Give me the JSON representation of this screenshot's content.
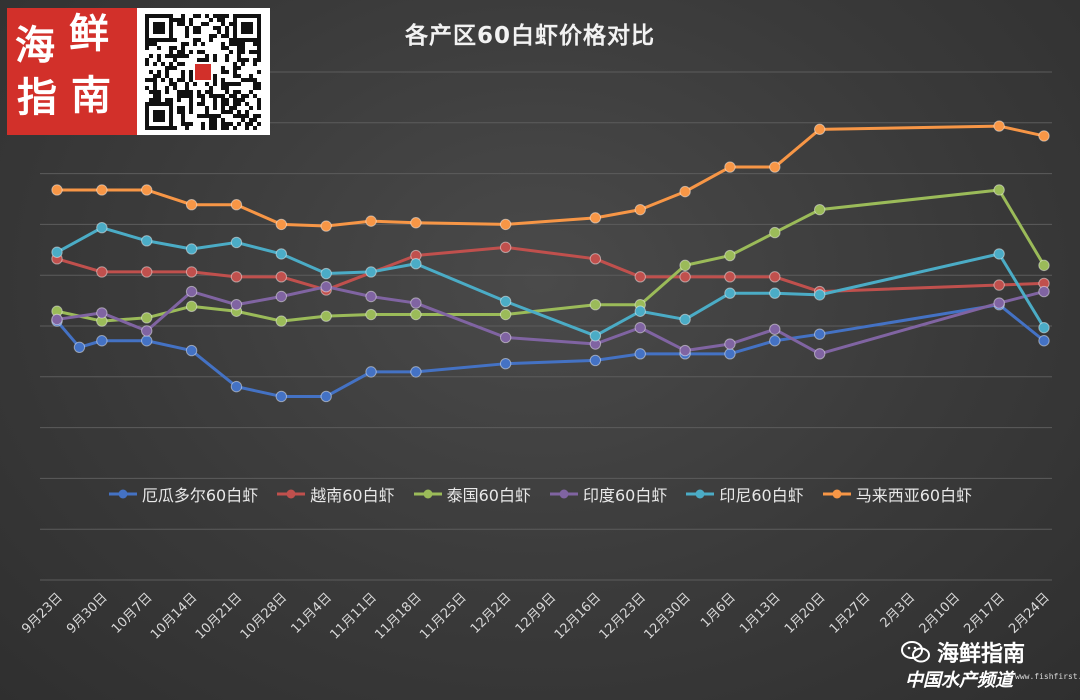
{
  "chart_data": {
    "type": "line",
    "title": "各产区60白虾价格对比",
    "categories": [
      "9月23日",
      "9月30日",
      "10月7日",
      "10月14日",
      "10月21日",
      "10月28日",
      "11月4日",
      "11月11日",
      "11月18日",
      "11月25日",
      "12月2日",
      "12月9日",
      "12月16日",
      "12月23日",
      "12月30日",
      "1月6日",
      "1月13日",
      "1月20日",
      "1月27日",
      "2月3日",
      "2月10日",
      "2月17日",
      "2月24日"
    ],
    "grid": "horizontal",
    "legend_position": "bottom",
    "series": [
      {
        "name": "厄瓜多尔60白虾",
        "color": "#4472c4",
        "points": [
          [
            0,
            29.8
          ],
          [
            0.5,
            28.2
          ],
          [
            1,
            28.6
          ],
          [
            2,
            28.6
          ],
          [
            3,
            28.0
          ],
          [
            4,
            25.8
          ],
          [
            5,
            25.2
          ],
          [
            6,
            25.2
          ],
          [
            7,
            26.7
          ],
          [
            8,
            26.7
          ],
          [
            10,
            27.2
          ],
          [
            12,
            27.4
          ],
          [
            13,
            27.8
          ],
          [
            14,
            27.8
          ],
          [
            15,
            27.8
          ],
          [
            16,
            28.6
          ],
          [
            17,
            29.0
          ],
          [
            21,
            30.8
          ],
          [
            22,
            28.6
          ]
        ]
      },
      {
        "name": "越南60白虾",
        "color": "#c0504d",
        "points": [
          [
            0,
            33.6
          ],
          [
            1,
            32.8
          ],
          [
            2,
            32.8
          ],
          [
            3,
            32.8
          ],
          [
            4,
            32.5
          ],
          [
            5,
            32.5
          ],
          [
            6,
            31.7
          ],
          [
            8,
            33.8
          ],
          [
            10,
            34.3
          ],
          [
            12,
            33.6
          ],
          [
            13,
            32.5
          ],
          [
            14,
            32.5
          ],
          [
            15,
            32.5
          ],
          [
            16,
            32.5
          ],
          [
            17,
            31.6
          ],
          [
            21,
            32.0
          ],
          [
            22,
            32.1
          ]
        ]
      },
      {
        "name": "泰国60白虾",
        "color": "#9bbb59",
        "points": [
          [
            0,
            30.4
          ],
          [
            1,
            29.8
          ],
          [
            2,
            30.0
          ],
          [
            3,
            30.7
          ],
          [
            4,
            30.4
          ],
          [
            5,
            29.8
          ],
          [
            6,
            30.1
          ],
          [
            7,
            30.2
          ],
          [
            8,
            30.2
          ],
          [
            10,
            30.2
          ],
          [
            12,
            30.8
          ],
          [
            13,
            30.8
          ],
          [
            14,
            33.2
          ],
          [
            15,
            33.8
          ],
          [
            16,
            35.2
          ],
          [
            17,
            36.6
          ],
          [
            21,
            37.8
          ],
          [
            22,
            33.2
          ]
        ]
      },
      {
        "name": "印度60白虾",
        "color": "#8064a2",
        "points": [
          [
            0,
            29.9
          ],
          [
            1,
            30.3
          ],
          [
            2,
            29.2
          ],
          [
            3,
            31.6
          ],
          [
            4,
            30.8
          ],
          [
            5,
            31.3
          ],
          [
            6,
            31.9
          ],
          [
            7,
            31.3
          ],
          [
            8,
            30.9
          ],
          [
            10,
            28.8
          ],
          [
            12,
            28.4
          ],
          [
            13,
            29.4
          ],
          [
            14,
            28.0
          ],
          [
            15,
            28.4
          ],
          [
            16,
            29.3
          ],
          [
            17,
            27.8
          ],
          [
            21,
            30.9
          ],
          [
            22,
            31.6
          ]
        ]
      },
      {
        "name": "印尼60白虾",
        "color": "#4bacc6",
        "points": [
          [
            0,
            34.0
          ],
          [
            1,
            35.5
          ],
          [
            2,
            34.7
          ],
          [
            3,
            34.2
          ],
          [
            4,
            34.6
          ],
          [
            5,
            33.9
          ],
          [
            6,
            32.7
          ],
          [
            7,
            32.8
          ],
          [
            8,
            33.3
          ],
          [
            10,
            31.0
          ],
          [
            12,
            28.9
          ],
          [
            13,
            30.4
          ],
          [
            14,
            29.9
          ],
          [
            15,
            31.5
          ],
          [
            16,
            31.5
          ],
          [
            17,
            31.4
          ],
          [
            21,
            33.9
          ],
          [
            22,
            29.4
          ]
        ]
      },
      {
        "name": "马来西亚60白虾",
        "color": "#f79646",
        "points": [
          [
            0,
            37.8
          ],
          [
            1,
            37.8
          ],
          [
            2,
            37.8
          ],
          [
            3,
            36.9
          ],
          [
            4,
            36.9
          ],
          [
            5,
            35.7
          ],
          [
            6,
            35.6
          ],
          [
            7,
            35.9
          ],
          [
            8,
            35.8
          ],
          [
            10,
            35.7
          ],
          [
            12,
            36.1
          ],
          [
            13,
            36.6
          ],
          [
            14,
            37.7
          ],
          [
            15,
            39.2
          ],
          [
            16,
            39.2
          ],
          [
            17,
            41.5
          ],
          [
            21,
            41.7
          ],
          [
            22,
            41.1
          ]
        ]
      }
    ]
  },
  "logo": {
    "chars": [
      "海",
      "鲜",
      "指",
      "南"
    ]
  },
  "watermark": {
    "title": "海鲜指南",
    "subtitle": "中国水产频道",
    "url": "www.fishfirst.cn"
  }
}
